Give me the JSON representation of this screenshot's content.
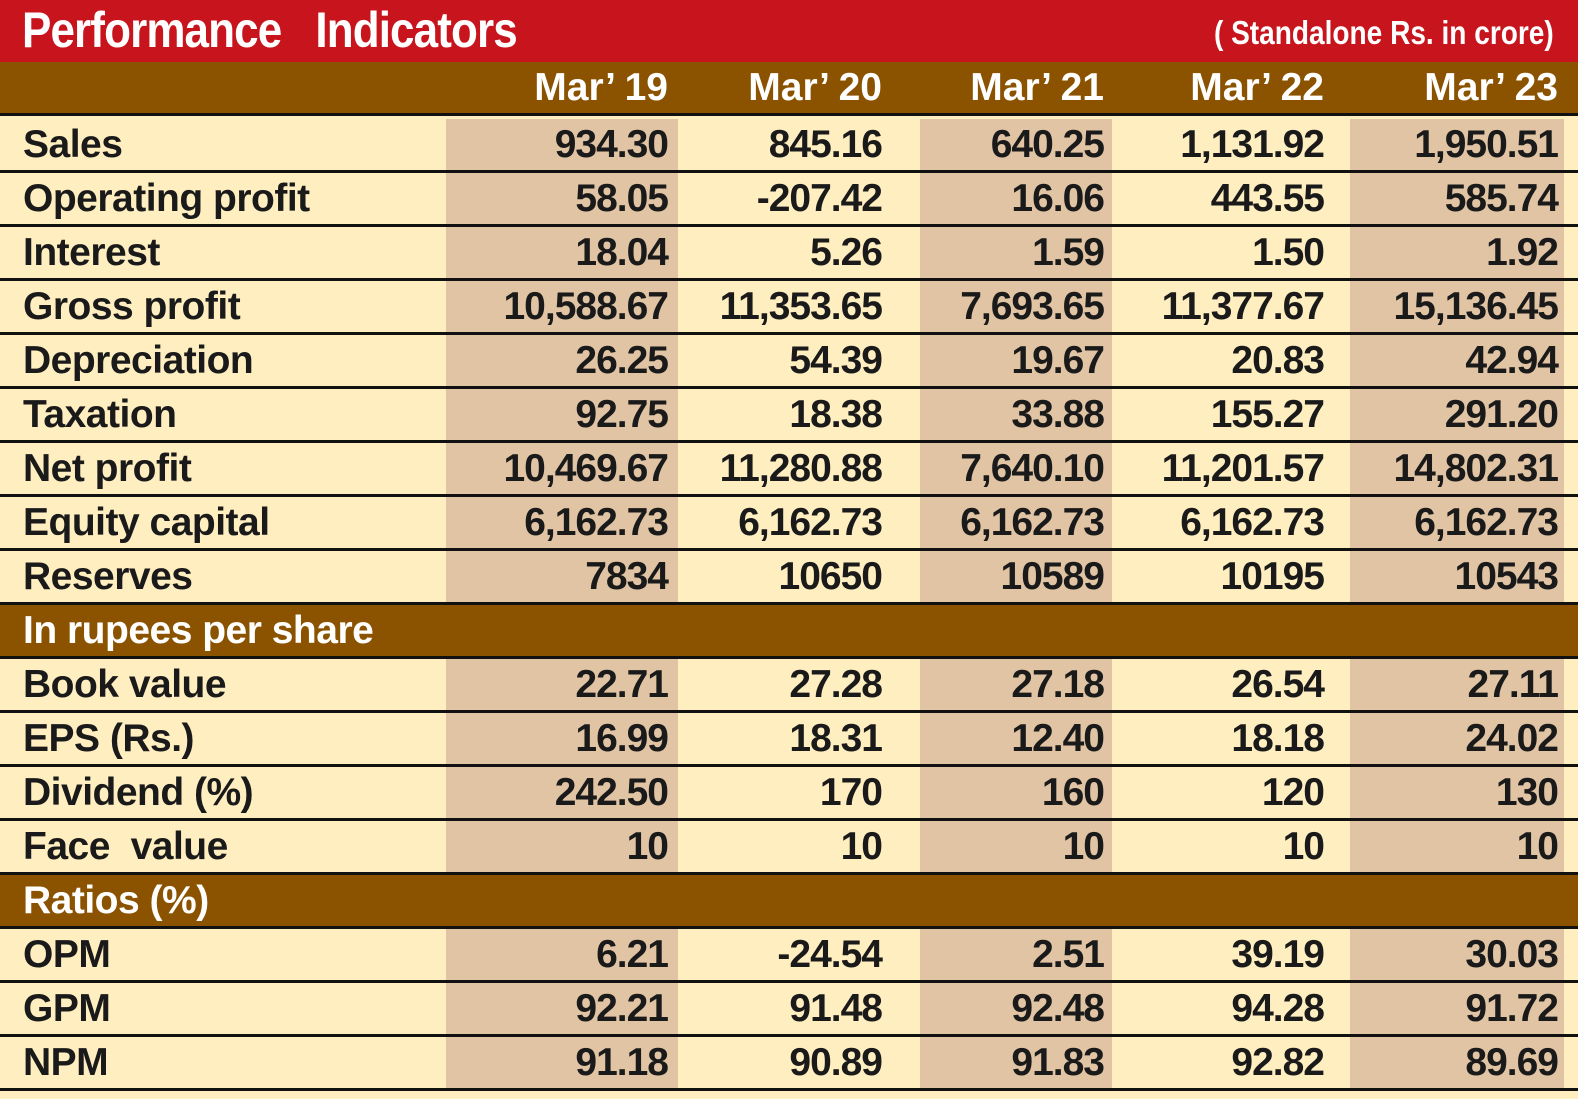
{
  "title": "Performance   Indicators",
  "subtitle": "( Standalone Rs. in crore)",
  "years": [
    "Mar’ 19",
    "Mar’ 20",
    "Mar’ 21",
    "Mar’ 22",
    "Mar’ 23"
  ],
  "rows": [
    {
      "label": "Sales",
      "values": [
        "934.30",
        "845.16",
        "640.25",
        "1,131.92",
        "1,950.51"
      ]
    },
    {
      "label": "Operating profit",
      "values": [
        "58.05",
        "-207.42",
        "16.06",
        "443.55",
        "585.74"
      ]
    },
    {
      "label": "Interest",
      "values": [
        "18.04",
        "5.26",
        "1.59",
        "1.50",
        "1.92"
      ]
    },
    {
      "label": "Gross profit",
      "values": [
        "10,588.67",
        "11,353.65",
        "7,693.65",
        "11,377.67",
        "15,136.45"
      ]
    },
    {
      "label": "Depreciation",
      "values": [
        "26.25",
        "54.39",
        "19.67",
        "20.83",
        "42.94"
      ]
    },
    {
      "label": "Taxation",
      "values": [
        "92.75",
        "18.38",
        "33.88",
        "155.27",
        "291.20"
      ]
    },
    {
      "label": "Net profit",
      "values": [
        "10,469.67",
        "11,280.88",
        "7,640.10",
        "11,201.57",
        "14,802.31"
      ]
    },
    {
      "label": "Equity capital",
      "values": [
        "6,162.73",
        "6,162.73",
        "6,162.73",
        "6,162.73",
        "6,162.73"
      ]
    },
    {
      "label": "Reserves",
      "values": [
        "7834",
        "10650",
        "10589",
        "10195",
        "10543"
      ]
    }
  ],
  "section_per_share": "In rupees per share",
  "per_share_rows": [
    {
      "label": "Book value",
      "values": [
        "22.71",
        "27.28",
        "27.18",
        "26.54",
        "27.11"
      ]
    },
    {
      "label": "EPS (Rs.)",
      "values": [
        "16.99",
        "18.31",
        "12.40",
        "18.18",
        "24.02"
      ]
    },
    {
      "label": "Dividend (%)",
      "values": [
        "242.50",
        "170",
        "160",
        "120",
        "130"
      ]
    },
    {
      "label": "Face  value",
      "values": [
        "10",
        "10",
        "10",
        "10",
        "10"
      ]
    }
  ],
  "section_ratios": "Ratios (%)",
  "ratio_rows": [
    {
      "label": "OPM",
      "values": [
        "6.21",
        "-24.54",
        "2.51",
        "39.19",
        "30.03"
      ]
    },
    {
      "label": "GPM",
      "values": [
        "92.21",
        "91.48",
        "92.48",
        "94.28",
        "91.72"
      ]
    },
    {
      "label": "NPM",
      "values": [
        "91.18",
        "90.89",
        "91.83",
        "92.82",
        "89.69"
      ]
    }
  ],
  "colors": {
    "title_bar": "#c8141c",
    "header_band": "#8b5300",
    "row_background": "#ffeec0",
    "shaded_column": "#e0c4a4",
    "divider": "#111111"
  }
}
